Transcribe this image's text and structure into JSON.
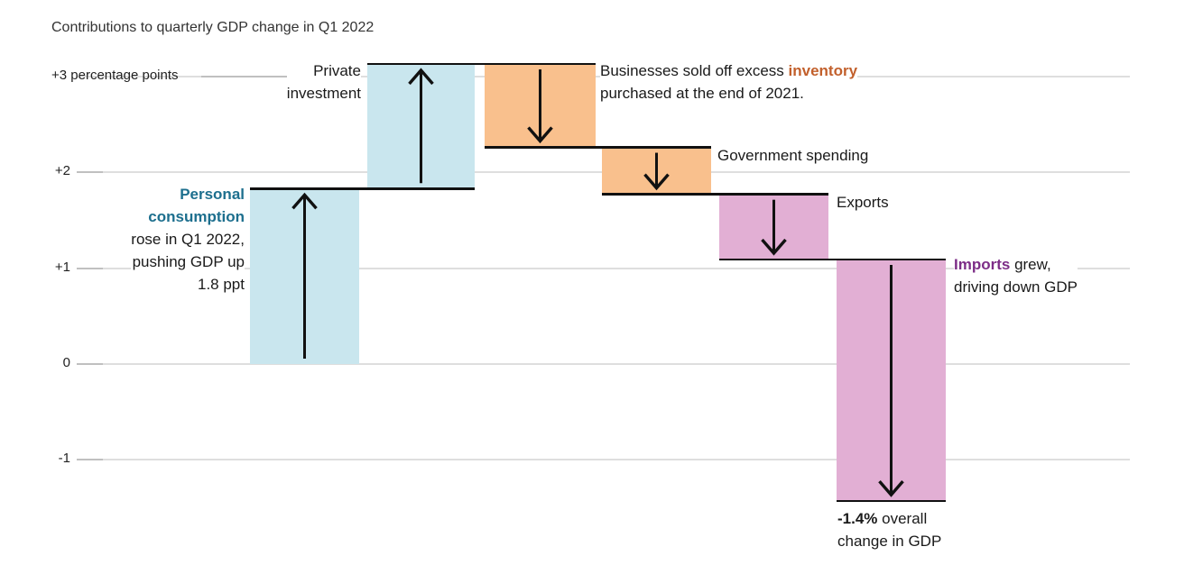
{
  "title": "Contributions to quarterly GDP change in Q1 2022",
  "colors": {
    "bar_blue": "#c9e6ee",
    "bar_orange": "#f9c08d",
    "bar_pink": "#e2afd4",
    "teal": "#1d6f8e",
    "orange": "#c2602c",
    "purple": "#7d2d87",
    "ink": "#1a1a1a",
    "title_text": "#333333",
    "gridline": "#dedede",
    "tick": "#c0c0c0",
    "step_line": "#111111"
  },
  "chart_data": {
    "type": "bar",
    "subtype": "waterfall",
    "title": "Contributions to quarterly GDP change in Q1 2022",
    "categories": [
      "Personal consumption",
      "Private investment",
      "Inventory",
      "Government spending",
      "Exports",
      "Imports"
    ],
    "values": [
      1.83,
      1.3,
      -0.87,
      -0.49,
      -0.68,
      -2.52
    ],
    "cumulative_levels": [
      1.83,
      3.13,
      2.26,
      1.77,
      1.09,
      -1.43
    ],
    "total_change_pct": -1.4,
    "ylabel": "percentage points",
    "ylim": [
      -2.2,
      3.3
    ],
    "grid": true,
    "legend": false,
    "bar_colors": [
      "bar_blue",
      "bar_blue",
      "bar_orange",
      "bar_orange",
      "bar_pink",
      "bar_pink"
    ],
    "yticks": [
      {
        "label": "+3 percentage points",
        "value": 3
      },
      {
        "label": "+2",
        "value": 2
      },
      {
        "label": "+1",
        "value": 1
      },
      {
        "label": "0",
        "value": 0
      },
      {
        "label": "-1",
        "value": -1
      }
    ]
  },
  "annotations": [
    {
      "id": "personal",
      "lines": [
        [
          {
            "t": "Personal",
            "c": "teal"
          }
        ],
        [
          {
            "t": "consumption",
            "c": "teal"
          }
        ],
        [
          {
            "t": "rose in Q1 2022,"
          }
        ],
        [
          {
            "t": "pushing GDP up"
          }
        ],
        [
          {
            "t": "1.8 ppt"
          }
        ]
      ]
    },
    {
      "id": "private",
      "lines": [
        [
          {
            "t": "Private"
          }
        ],
        [
          {
            "t": "investment"
          }
        ]
      ]
    },
    {
      "id": "inventory",
      "lines": [
        [
          {
            "t": "Businesses sold off excess "
          },
          {
            "t": "inventory",
            "c": "orange"
          }
        ],
        [
          {
            "t": "purchased at the end of 2021."
          }
        ]
      ]
    },
    {
      "id": "government",
      "lines": [
        [
          {
            "t": "Government spending"
          }
        ]
      ]
    },
    {
      "id": "exports",
      "lines": [
        [
          {
            "t": "Exports"
          }
        ]
      ]
    },
    {
      "id": "imports",
      "lines": [
        [
          {
            "t": "Imports",
            "c": "purple"
          },
          {
            "t": " grew,"
          }
        ],
        [
          {
            "t": "driving down GDP"
          }
        ]
      ]
    },
    {
      "id": "total",
      "lines": [
        [
          {
            "t": "-1.4%",
            "b": true
          },
          {
            "t": " overall"
          }
        ],
        [
          {
            "t": "change in GDP"
          }
        ]
      ]
    }
  ]
}
